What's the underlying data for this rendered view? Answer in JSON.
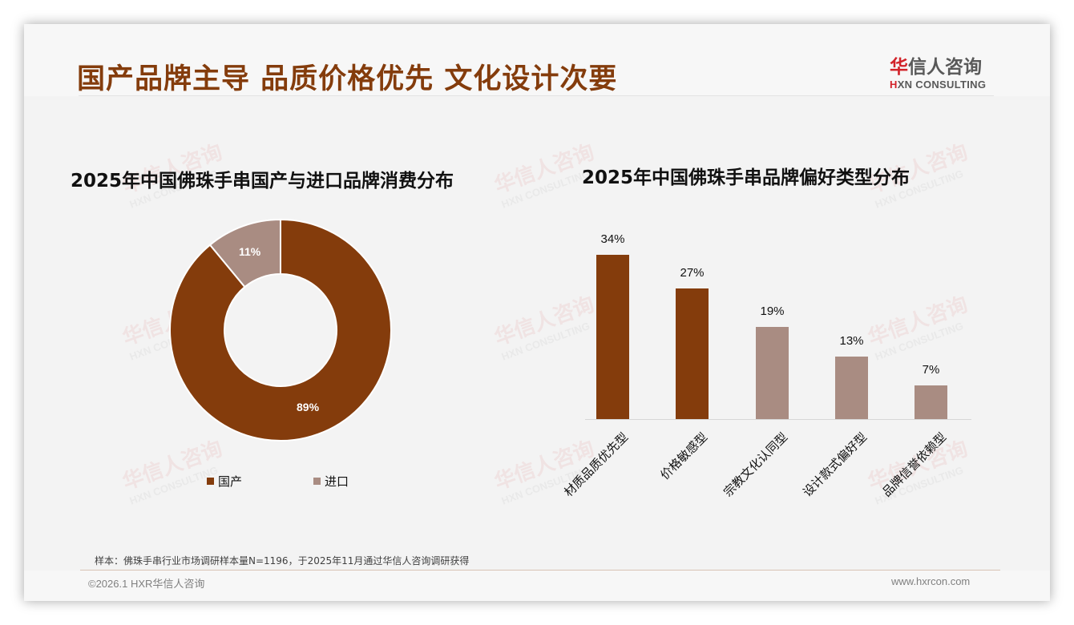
{
  "header": {
    "title": "国产品牌主导 品质价格优先 文化设计次要",
    "logo": {
      "cn_first": "华",
      "cn_rest": "信人咨询",
      "en_first": "H",
      "en_rest": "XN CONSULTING"
    }
  },
  "watermark": {
    "cn": "华信人咨询",
    "en": "HXN CONSULTING"
  },
  "left_chart": {
    "title": "2025年中国佛珠手串国产与进口品牌消费分布",
    "slices": [
      {
        "label": "国产",
        "value": 89,
        "display": "89%",
        "color": "#843c0c"
      },
      {
        "label": "进口",
        "value": 11,
        "display": "11%",
        "color": "#a98c82"
      }
    ]
  },
  "right_chart": {
    "title": "2025年中国佛珠手串品牌偏好类型分布",
    "bars": [
      {
        "label": "材质品质优先型",
        "value": 34,
        "display": "34%",
        "color": "#843c0c"
      },
      {
        "label": "价格敏感型",
        "value": 27,
        "display": "27%",
        "color": "#843c0c"
      },
      {
        "label": "宗教文化认同型",
        "value": 19,
        "display": "19%",
        "color": "#a98c82"
      },
      {
        "label": "设计款式偏好型",
        "value": 13,
        "display": "13%",
        "color": "#a98c82"
      },
      {
        "label": "品牌信誉依赖型",
        "value": 7,
        "display": "7%",
        "color": "#a98c82"
      }
    ]
  },
  "footer": {
    "note": "样本：佛珠手串行业市场调研样本量N=1196，于2025年11月通过华信人咨询调研获得",
    "copyright": "©2026.1 HXR华信人咨询",
    "website": "www.hxrcon.com"
  },
  "colors": {
    "brand_brown": "#843c0c",
    "muted_taupe": "#a98c82",
    "logo_red": "#d2232a"
  },
  "chart_data": [
    {
      "type": "pie",
      "title": "2025年中国佛珠手串国产与进口品牌消费分布",
      "categories": [
        "国产",
        "进口"
      ],
      "values": [
        89,
        11
      ],
      "unit": "%",
      "donut": true,
      "legend_position": "bottom"
    },
    {
      "type": "bar",
      "title": "2025年中国佛珠手串品牌偏好类型分布",
      "categories": [
        "材质品质优先型",
        "价格敏感型",
        "宗教文化认同型",
        "设计款式偏好型",
        "品牌信誉依赖型"
      ],
      "values": [
        34,
        27,
        19,
        13,
        7
      ],
      "unit": "%",
      "xlabel": "",
      "ylabel": "",
      "ylim": [
        0,
        34
      ],
      "grid": false,
      "data_labels": true
    }
  ]
}
